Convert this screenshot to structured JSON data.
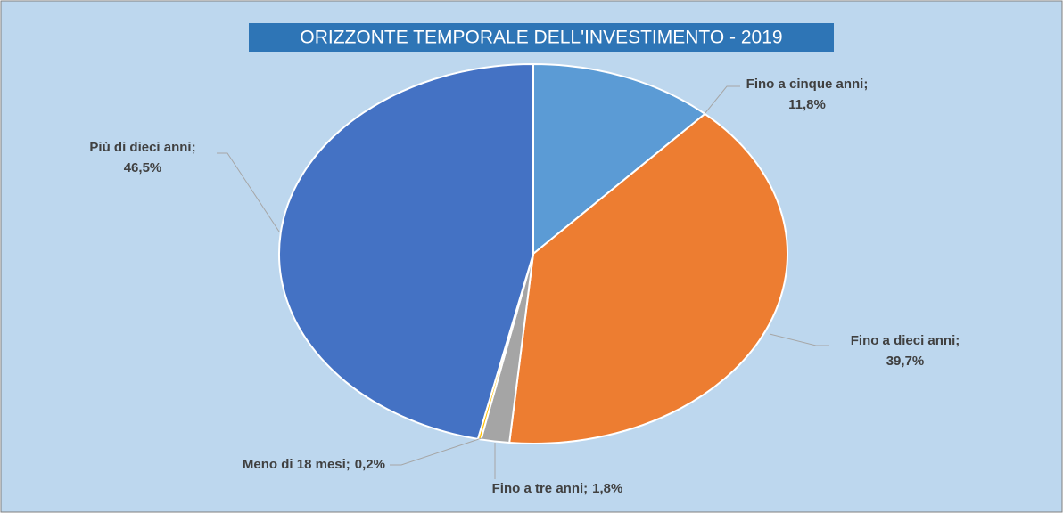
{
  "chart_data": {
    "type": "pie",
    "title": "ORIZZONTE TEMPORALE DELL'INVESTIMENTO - 2019",
    "categories": [
      "Fino a cinque anni",
      "Fino a dieci anni",
      "Fino a tre anni",
      "Meno di 18 mesi",
      "Più di dieci anni"
    ],
    "values": [
      11.8,
      39.7,
      1.8,
      0.2,
      46.5
    ],
    "value_labels": [
      "11,8%",
      "39,7%",
      "1,8%",
      "0,2%",
      "46,5%"
    ],
    "label_separator": ";",
    "colors": [
      "#5b9bd5",
      "#ed7d31",
      "#a5a5a5",
      "#ffc000",
      "#4472c4"
    ]
  }
}
